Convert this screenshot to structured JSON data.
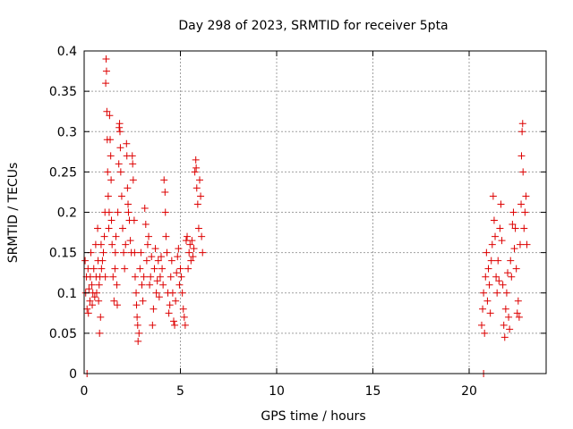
{
  "chart_data": {
    "type": "scatter",
    "title": "Day 298 of 2023, SRMTID for receiver 5pta",
    "xlabel": "GPS time / hours",
    "ylabel": "SRMTID / TECUs",
    "xlim": [
      0,
      24
    ],
    "ylim": [
      0,
      0.4
    ],
    "xticks": [
      0,
      5,
      10,
      15,
      20
    ],
    "yticks": [
      0,
      0.05,
      0.1,
      0.15,
      0.2,
      0.25,
      0.3,
      0.35,
      0.4
    ],
    "grid": true,
    "marker": "+",
    "color": "#dd0000",
    "series": [
      {
        "name": "SRMTID",
        "points": [
          [
            0.05,
            0.14
          ],
          [
            0.08,
            0.1
          ],
          [
            0.12,
            0.12
          ],
          [
            0.15,
            0.08
          ],
          [
            0.2,
            0.13
          ],
          [
            0.22,
            0.075
          ],
          [
            0.25,
            0.105
          ],
          [
            0.3,
            0.09
          ],
          [
            0.32,
            0.12
          ],
          [
            0.35,
            0.15
          ],
          [
            0.4,
            0.11
          ],
          [
            0.42,
            0.085
          ],
          [
            0.45,
            0.1
          ],
          [
            0.5,
            0.13
          ],
          [
            0.55,
            0.095
          ],
          [
            0.6,
            0.16
          ],
          [
            0.62,
            0.12
          ],
          [
            0.65,
            0.1
          ],
          [
            0.7,
            0.18
          ],
          [
            0.72,
            0.14
          ],
          [
            0.75,
            0.09
          ],
          [
            0.78,
            0.11
          ],
          [
            0.8,
            0.05
          ],
          [
            0.82,
            0.12
          ],
          [
            0.85,
            0.07
          ],
          [
            0.88,
            0.16
          ],
          [
            0.9,
            0.13
          ],
          [
            0.95,
            0.14
          ],
          [
            1.0,
            0.15
          ],
          [
            1.05,
            0.17
          ],
          [
            1.08,
            0.2
          ],
          [
            1.1,
            0.12
          ],
          [
            1.12,
            0.36
          ],
          [
            1.14,
            0.39
          ],
          [
            1.16,
            0.375
          ],
          [
            1.18,
            0.325
          ],
          [
            1.2,
            0.29
          ],
          [
            1.22,
            0.25
          ],
          [
            1.25,
            0.22
          ],
          [
            1.28,
            0.18
          ],
          [
            1.3,
            0.2
          ],
          [
            1.32,
            0.32
          ],
          [
            1.35,
            0.29
          ],
          [
            1.38,
            0.27
          ],
          [
            1.4,
            0.24
          ],
          [
            1.42,
            0.19
          ],
          [
            1.45,
            0.16
          ],
          [
            1.5,
            0.12
          ],
          [
            1.55,
            0.09
          ],
          [
            1.6,
            0.13
          ],
          [
            1.62,
            0.15
          ],
          [
            1.65,
            0.17
          ],
          [
            1.7,
            0.11
          ],
          [
            1.72,
            0.085
          ],
          [
            1.75,
            0.2
          ],
          [
            1.8,
            0.26
          ],
          [
            1.82,
            0.305
          ],
          [
            1.84,
            0.31
          ],
          [
            1.86,
            0.3
          ],
          [
            1.88,
            0.28
          ],
          [
            1.9,
            0.25
          ],
          [
            1.95,
            0.22
          ],
          [
            2.0,
            0.18
          ],
          [
            2.05,
            0.15
          ],
          [
            2.1,
            0.13
          ],
          [
            2.15,
            0.16
          ],
          [
            2.2,
            0.285
          ],
          [
            2.22,
            0.27
          ],
          [
            2.25,
            0.23
          ],
          [
            2.28,
            0.21
          ],
          [
            2.3,
            0.2
          ],
          [
            2.35,
            0.19
          ],
          [
            2.4,
            0.165
          ],
          [
            2.45,
            0.15
          ],
          [
            2.5,
            0.27
          ],
          [
            2.52,
            0.26
          ],
          [
            2.55,
            0.24
          ],
          [
            2.6,
            0.19
          ],
          [
            2.62,
            0.15
          ],
          [
            2.65,
            0.12
          ],
          [
            2.7,
            0.1
          ],
          [
            2.72,
            0.085
          ],
          [
            2.75,
            0.07
          ],
          [
            2.78,
            0.06
          ],
          [
            2.8,
            0.04
          ],
          [
            2.85,
            0.05
          ],
          [
            2.9,
            0.13
          ],
          [
            2.95,
            0.15
          ],
          [
            3.0,
            0.11
          ],
          [
            3.05,
            0.09
          ],
          [
            3.1,
            0.12
          ],
          [
            3.15,
            0.205
          ],
          [
            3.2,
            0.185
          ],
          [
            3.25,
            0.14
          ],
          [
            3.3,
            0.16
          ],
          [
            3.35,
            0.17
          ],
          [
            3.4,
            0.11
          ],
          [
            3.45,
            0.12
          ],
          [
            3.5,
            0.145
          ],
          [
            3.55,
            0.06
          ],
          [
            3.6,
            0.08
          ],
          [
            3.65,
            0.13
          ],
          [
            3.7,
            0.155
          ],
          [
            3.75,
            0.1
          ],
          [
            3.8,
            0.115
          ],
          [
            3.85,
            0.14
          ],
          [
            3.9,
            0.095
          ],
          [
            3.95,
            0.12
          ],
          [
            4.0,
            0.145
          ],
          [
            4.05,
            0.13
          ],
          [
            4.1,
            0.11
          ],
          [
            4.15,
            0.24
          ],
          [
            4.2,
            0.225
          ],
          [
            4.22,
            0.2
          ],
          [
            4.25,
            0.17
          ],
          [
            4.3,
            0.15
          ],
          [
            4.35,
            0.1
          ],
          [
            4.4,
            0.075
          ],
          [
            4.45,
            0.085
          ],
          [
            4.5,
            0.12
          ],
          [
            4.55,
            0.14
          ],
          [
            4.6,
            0.1
          ],
          [
            4.65,
            0.065
          ],
          [
            4.7,
            0.06
          ],
          [
            4.75,
            0.09
          ],
          [
            4.8,
            0.125
          ],
          [
            4.85,
            0.145
          ],
          [
            4.9,
            0.155
          ],
          [
            4.95,
            0.11
          ],
          [
            5.0,
            0.13
          ],
          [
            5.05,
            0.12
          ],
          [
            5.1,
            0.1
          ],
          [
            5.15,
            0.08
          ],
          [
            5.2,
            0.07
          ],
          [
            5.25,
            0.06
          ],
          [
            5.3,
            0.165
          ],
          [
            5.35,
            0.17
          ],
          [
            5.4,
            0.13
          ],
          [
            5.45,
            0.15
          ],
          [
            5.5,
            0.16
          ],
          [
            5.55,
            0.14
          ],
          [
            5.6,
            0.165
          ],
          [
            5.65,
            0.145
          ],
          [
            5.7,
            0.155
          ],
          [
            5.75,
            0.25
          ],
          [
            5.8,
            0.265
          ],
          [
            5.82,
            0.255
          ],
          [
            5.85,
            0.23
          ],
          [
            5.9,
            0.21
          ],
          [
            5.95,
            0.18
          ],
          [
            6.0,
            0.24
          ],
          [
            6.05,
            0.22
          ],
          [
            6.1,
            0.17
          ],
          [
            6.15,
            0.15
          ],
          [
            0.15,
            0.0
          ],
          [
            20.75,
            0.0
          ],
          [
            20.65,
            0.06
          ],
          [
            20.7,
            0.08
          ],
          [
            20.75,
            0.1
          ],
          [
            20.8,
            0.05
          ],
          [
            20.85,
            0.12
          ],
          [
            20.9,
            0.15
          ],
          [
            20.95,
            0.09
          ],
          [
            21.0,
            0.13
          ],
          [
            21.05,
            0.11
          ],
          [
            21.1,
            0.075
          ],
          [
            21.15,
            0.14
          ],
          [
            21.2,
            0.16
          ],
          [
            21.25,
            0.22
          ],
          [
            21.3,
            0.19
          ],
          [
            21.35,
            0.17
          ],
          [
            21.4,
            0.12
          ],
          [
            21.45,
            0.1
          ],
          [
            21.5,
            0.14
          ],
          [
            21.55,
            0.115
          ],
          [
            21.6,
            0.18
          ],
          [
            21.65,
            0.21
          ],
          [
            21.7,
            0.165
          ],
          [
            21.75,
            0.11
          ],
          [
            21.8,
            0.06
          ],
          [
            21.85,
            0.045
          ],
          [
            21.9,
            0.08
          ],
          [
            21.95,
            0.1
          ],
          [
            22.0,
            0.125
          ],
          [
            22.05,
            0.07
          ],
          [
            22.1,
            0.055
          ],
          [
            22.15,
            0.14
          ],
          [
            22.2,
            0.12
          ],
          [
            22.25,
            0.185
          ],
          [
            22.3,
            0.2
          ],
          [
            22.35,
            0.155
          ],
          [
            22.4,
            0.18
          ],
          [
            22.45,
            0.13
          ],
          [
            22.5,
            0.075
          ],
          [
            22.55,
            0.09
          ],
          [
            22.6,
            0.07
          ],
          [
            22.65,
            0.16
          ],
          [
            22.7,
            0.21
          ],
          [
            22.72,
            0.27
          ],
          [
            22.75,
            0.3
          ],
          [
            22.78,
            0.31
          ],
          [
            22.8,
            0.25
          ],
          [
            22.85,
            0.18
          ],
          [
            22.9,
            0.2
          ],
          [
            22.95,
            0.22
          ],
          [
            23.0,
            0.16
          ]
        ]
      }
    ]
  }
}
